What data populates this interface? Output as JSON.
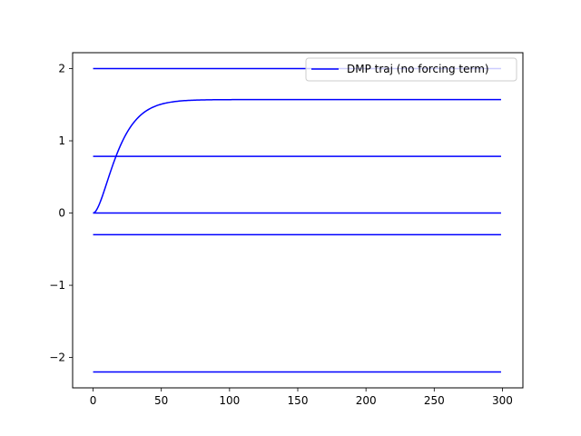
{
  "chart_data": {
    "type": "line",
    "title": "",
    "xlabel": "",
    "ylabel": "",
    "xlim": [
      -15,
      315
    ],
    "ylim": [
      -2.42,
      2.22
    ],
    "xticks": [
      0,
      50,
      100,
      150,
      200,
      250,
      300
    ],
    "yticks": [
      -2,
      -1,
      0,
      1,
      2
    ],
    "ytick_labels": [
      "−2",
      "−1",
      "0",
      "1",
      "2"
    ],
    "grid": false,
    "legend": {
      "placement": "top-right",
      "entries": [
        {
          "label": "DMP traj (no forcing term)",
          "color": "#0000ff"
        }
      ]
    },
    "series": [
      {
        "name": "DMP traj (no forcing term)",
        "color": "#0000ff",
        "shape": "sigmoid",
        "x_start": 0,
        "x_end": 299,
        "y_start": 0,
        "y_end": 1.5708
      },
      {
        "color": "#0000ff",
        "shape": "constant",
        "x_start": 0,
        "x_end": 299,
        "y": 2.0
      },
      {
        "color": "#0000ff",
        "shape": "constant",
        "x_start": 0,
        "x_end": 299,
        "y": 0.785
      },
      {
        "color": "#0000ff",
        "shape": "constant",
        "x_start": 0,
        "x_end": 299,
        "y": 0.0
      },
      {
        "color": "#0000ff",
        "shape": "constant",
        "x_start": 0,
        "x_end": 299,
        "y": -0.3
      },
      {
        "color": "#0000ff",
        "shape": "constant",
        "x_start": 0,
        "x_end": 299,
        "y": -2.2
      }
    ]
  }
}
